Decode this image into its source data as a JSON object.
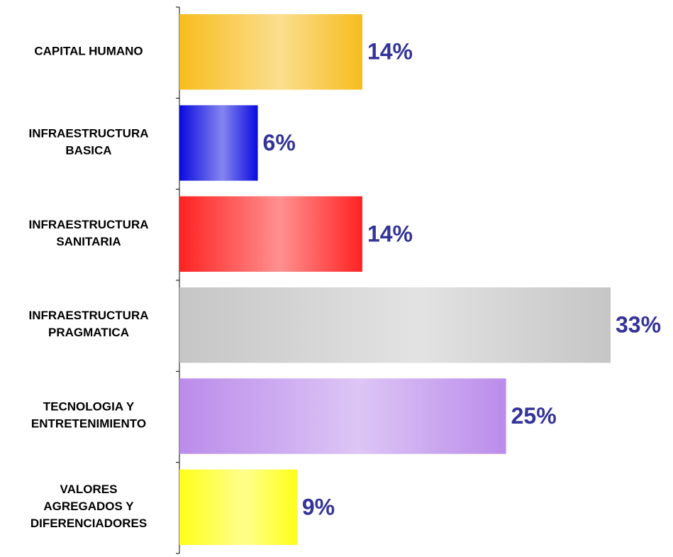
{
  "chart_data": {
    "type": "bar",
    "orientation": "horizontal",
    "categories": [
      "CAPITAL HUMANO",
      "INFRAESTRUCTURA\nBASICA",
      "INFRAESTRUCTURA\nSANITARIA",
      "INFRAESTRUCTURA\nPRAGMATICA",
      "TECNOLOGIA Y\nENTRETENIMIENTO",
      "VALORES\nAGREGADOS Y\nDIFERENCIADORES"
    ],
    "values": [
      14,
      6,
      14,
      33,
      25,
      9
    ],
    "value_labels": [
      "14%",
      "6%",
      "14%",
      "33%",
      "25%",
      "9%"
    ],
    "colors": [
      "#f7bd1e",
      "#0a0ae0",
      "#ff2222",
      "#c6c6c6",
      "#bb8ceb",
      "#ffff1a"
    ]
  }
}
